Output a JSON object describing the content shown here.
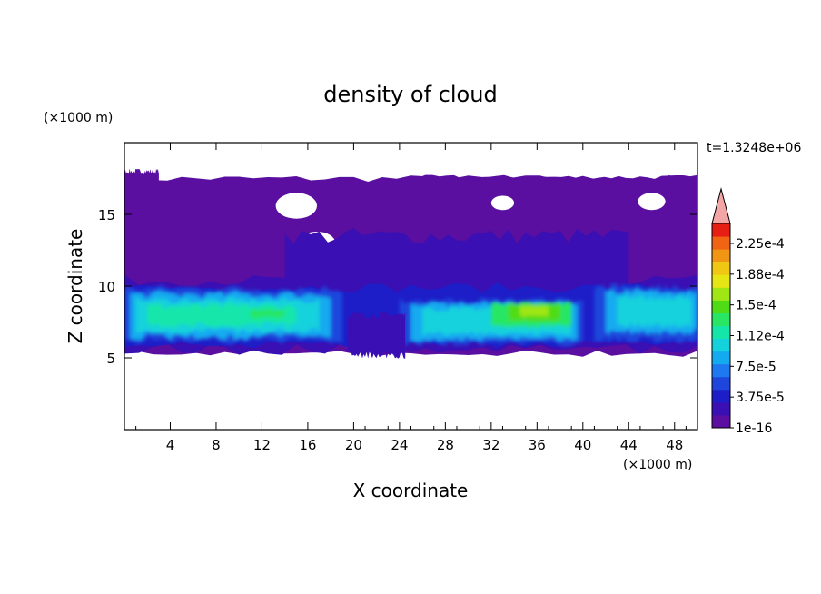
{
  "chart_data": {
    "type": "heatmap",
    "title": "density of cloud",
    "xlabel": "X coordinate",
    "ylabel": "Z coordinate",
    "x_unit": "(×1000 m)",
    "y_unit": "(×1000 m)",
    "time_label": "t=1.3248e+06",
    "xlim": [
      0,
      50
    ],
    "ylim": [
      0,
      20
    ],
    "x_ticks": [
      4,
      8,
      12,
      16,
      20,
      24,
      28,
      32,
      36,
      40,
      44,
      48
    ],
    "y_ticks": [
      5,
      10,
      15
    ],
    "colorbar": {
      "min": 1e-16,
      "max": 0.000225,
      "labels": [
        "2.25e-4",
        "1.88e-4",
        "1.5e-4",
        "1.12e-4",
        "7.5e-5",
        "3.75e-5",
        "1e-16"
      ],
      "colors": [
        "#5a0fa0",
        "#3a0fb4",
        "#1e1ec8",
        "#1e46dc",
        "#1e78f0",
        "#14aaf0",
        "#14d2dc",
        "#14e6aa",
        "#28e664",
        "#50dc14",
        "#a0e614",
        "#e6e614",
        "#f0c814",
        "#f09614",
        "#f06414",
        "#e61e14"
      ],
      "overflow_color": "#f4a6a6"
    },
    "field": {
      "regions": [
        {
          "name": "background layer",
          "x0": 0,
          "x1": 50,
          "z0": 5.3,
          "z1": 17.8,
          "level": 0
        },
        {
          "name": "lower band",
          "x0": 0,
          "x1": 50,
          "z0": 5.6,
          "z1": 10.4,
          "level": 2
        },
        {
          "name": "west cloud core",
          "x0": 0,
          "x1": 19,
          "z0": 6.3,
          "z1": 9.7,
          "level": 6
        },
        {
          "name": "west peak",
          "x0": 1,
          "x1": 16,
          "z0": 7.2,
          "z1": 8.8,
          "level": 8
        },
        {
          "name": "central cloud core",
          "x0": 24,
          "x1": 40,
          "z0": 6.3,
          "z1": 9.0,
          "level": 6
        },
        {
          "name": "central peak",
          "x0": 32,
          "x1": 39,
          "z0": 7.6,
          "z1": 8.9,
          "level": 10
        },
        {
          "name": "east cloud core",
          "x0": 41,
          "x1": 50,
          "z0": 6.5,
          "z1": 9.8,
          "level": 5
        }
      ]
    }
  }
}
